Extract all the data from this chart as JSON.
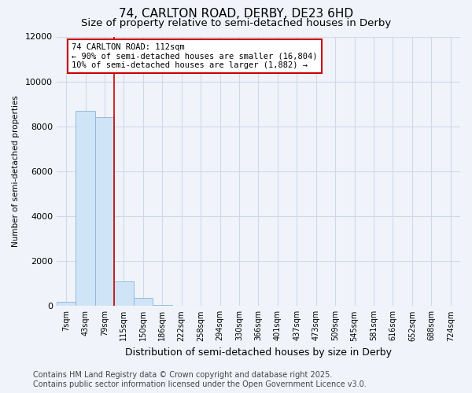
{
  "title": "74, CARLTON ROAD, DERBY, DE23 6HD",
  "subtitle": "Size of property relative to semi-detached houses in Derby",
  "xlabel": "Distribution of semi-detached houses by size in Derby",
  "ylabel": "Number of semi-detached properties",
  "categories": [
    "7sqm",
    "43sqm",
    "79sqm",
    "115sqm",
    "150sqm",
    "186sqm",
    "222sqm",
    "258sqm",
    "294sqm",
    "330sqm",
    "366sqm",
    "401sqm",
    "437sqm",
    "473sqm",
    "509sqm",
    "545sqm",
    "581sqm",
    "616sqm",
    "652sqm",
    "688sqm",
    "724sqm"
  ],
  "values": [
    200,
    8700,
    8400,
    1100,
    350,
    50,
    0,
    0,
    0,
    0,
    0,
    0,
    0,
    0,
    0,
    0,
    0,
    0,
    0,
    0,
    0
  ],
  "bar_color": "#d0e4f7",
  "bar_edge_color": "#8ab4d8",
  "property_label": "74 CARLTON ROAD: 112sqm",
  "annotation_line1": "← 90% of semi-detached houses are smaller (16,804)",
  "annotation_line2": "10% of semi-detached houses are larger (1,882) →",
  "annotation_box_color": "#ffffff",
  "annotation_box_edge_color": "#cc0000",
  "vline_color": "#cc0000",
  "ylim": [
    0,
    12000
  ],
  "yticks": [
    0,
    2000,
    4000,
    6000,
    8000,
    10000,
    12000
  ],
  "grid_color": "#d0d8e8",
  "background_color": "#f0f4fa",
  "plot_bg_color": "#f0f4fa",
  "footer_line1": "Contains HM Land Registry data © Crown copyright and database right 2025.",
  "footer_line2": "Contains public sector information licensed under the Open Government Licence v3.0.",
  "title_fontsize": 11,
  "subtitle_fontsize": 9.5,
  "footer_fontsize": 7
}
